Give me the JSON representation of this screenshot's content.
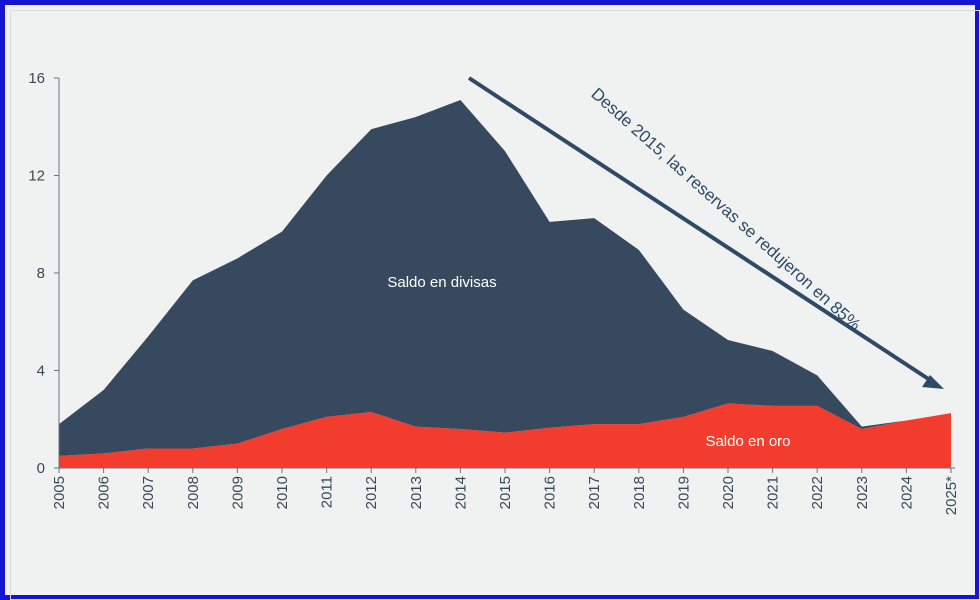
{
  "chart_data": {
    "type": "area",
    "stacked": true,
    "categories": [
      "2005",
      "2006",
      "2007",
      "2008",
      "2009",
      "2010",
      "2011",
      "2012",
      "2013",
      "2014",
      "2015",
      "2016",
      "2017",
      "2018",
      "2019",
      "2020",
      "2021",
      "2022",
      "2023",
      "2024",
      "2025*"
    ],
    "series": [
      {
        "name": "Saldo en oro",
        "color": "#f23d2e",
        "values": [
          0.5,
          0.6,
          0.8,
          0.8,
          1.0,
          1.6,
          2.1,
          2.3,
          1.7,
          1.6,
          1.45,
          1.65,
          1.8,
          1.8,
          2.1,
          2.65,
          2.55,
          2.55,
          1.6,
          1.95,
          2.25
        ]
      },
      {
        "name": "Saldo en divisas",
        "color": "#37495f",
        "values": [
          1.3,
          2.6,
          4.6,
          6.9,
          7.6,
          8.1,
          9.9,
          11.6,
          12.7,
          13.5,
          11.55,
          8.45,
          8.45,
          7.15,
          4.4,
          2.6,
          2.25,
          1.25,
          0.1,
          0.0,
          0.0
        ]
      }
    ],
    "series_labels": {
      "divisas": "Saldo en divisas",
      "oro": "Saldo en oro"
    },
    "yticks": [
      "0",
      "4",
      "8",
      "12",
      "16"
    ],
    "ylim": [
      0,
      16
    ],
    "annotation": "Desde 2015, las reservas se redujeron en 85%.",
    "title": "",
    "xlabel": "",
    "ylabel": ""
  }
}
